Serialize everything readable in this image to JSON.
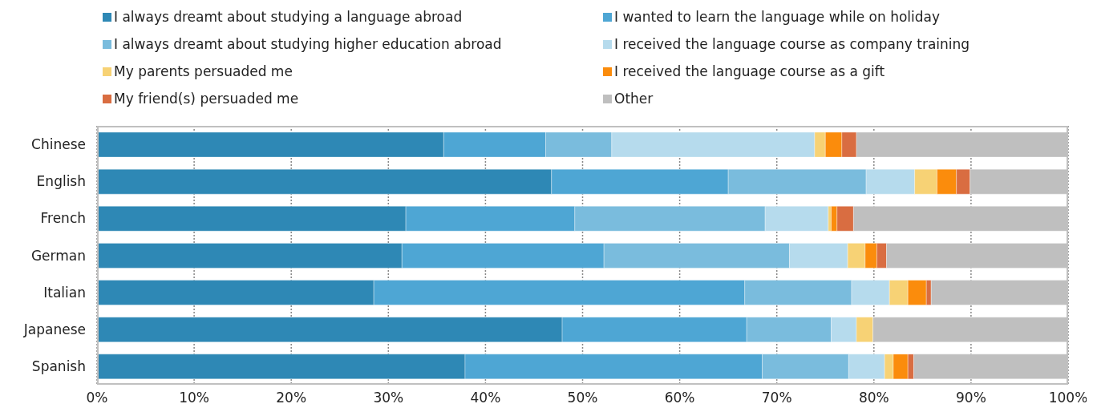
{
  "chart_data": {
    "type": "bar",
    "orientation": "horizontal",
    "stacked": true,
    "categories": [
      "Chinese",
      "English",
      "French",
      "German",
      "Italian",
      "Japanese",
      "Spanish"
    ],
    "series": [
      {
        "name": "I always dreamt about studying a language abroad",
        "color": "#2e88b5",
        "values": [
          35.7,
          46.8,
          31.8,
          31.4,
          28.5,
          47.9,
          37.9
        ]
      },
      {
        "name": "I wanted to learn the language while on holiday",
        "color": "#4ea6d4",
        "values": [
          10.5,
          18.2,
          17.4,
          20.8,
          38.2,
          19.0,
          30.6
        ]
      },
      {
        "name": "I always dreamt about studying higher education abroad",
        "color": "#7abcdd",
        "values": [
          6.8,
          14.2,
          19.6,
          19.1,
          11.0,
          8.7,
          8.9
        ]
      },
      {
        "name": "I received the language course as company training",
        "color": "#b6dbed",
        "values": [
          20.9,
          5.0,
          6.5,
          6.0,
          3.9,
          2.6,
          3.7
        ]
      },
      {
        "name": "My parents persuaded me",
        "color": "#f7d275",
        "values": [
          1.1,
          2.3,
          0.3,
          1.8,
          1.9,
          1.7,
          0.9
        ]
      },
      {
        "name": "I received the language course as a gift",
        "color": "#fb8c0c",
        "values": [
          1.7,
          2.0,
          0.6,
          1.2,
          1.9,
          0,
          1.5
        ]
      },
      {
        "name": "My friend(s) persuaded me",
        "color": "#d96d41",
        "values": [
          1.5,
          1.4,
          1.7,
          1.0,
          0.5,
          0,
          0.6
        ]
      },
      {
        "name": "Other",
        "color": "#bfbfbf",
        "values": [
          21.8,
          10.1,
          22.1,
          18.7,
          14.1,
          20.1,
          15.9
        ]
      }
    ],
    "xlim": [
      0,
      100
    ],
    "xticks": [
      {
        "value": 0,
        "label": "0%"
      },
      {
        "value": 10,
        "label": "10%"
      },
      {
        "value": 20,
        "label": "20%"
      },
      {
        "value": 30,
        "label": "30%"
      },
      {
        "value": 40,
        "label": "40%"
      },
      {
        "value": 50,
        "label": "50%"
      },
      {
        "value": 60,
        "label": "60%"
      },
      {
        "value": 70,
        "label": "70%"
      },
      {
        "value": 80,
        "label": "80%"
      },
      {
        "value": 90,
        "label": "90%"
      },
      {
        "value": 100,
        "label": "100%"
      }
    ],
    "grid": "x",
    "legend": "top"
  }
}
